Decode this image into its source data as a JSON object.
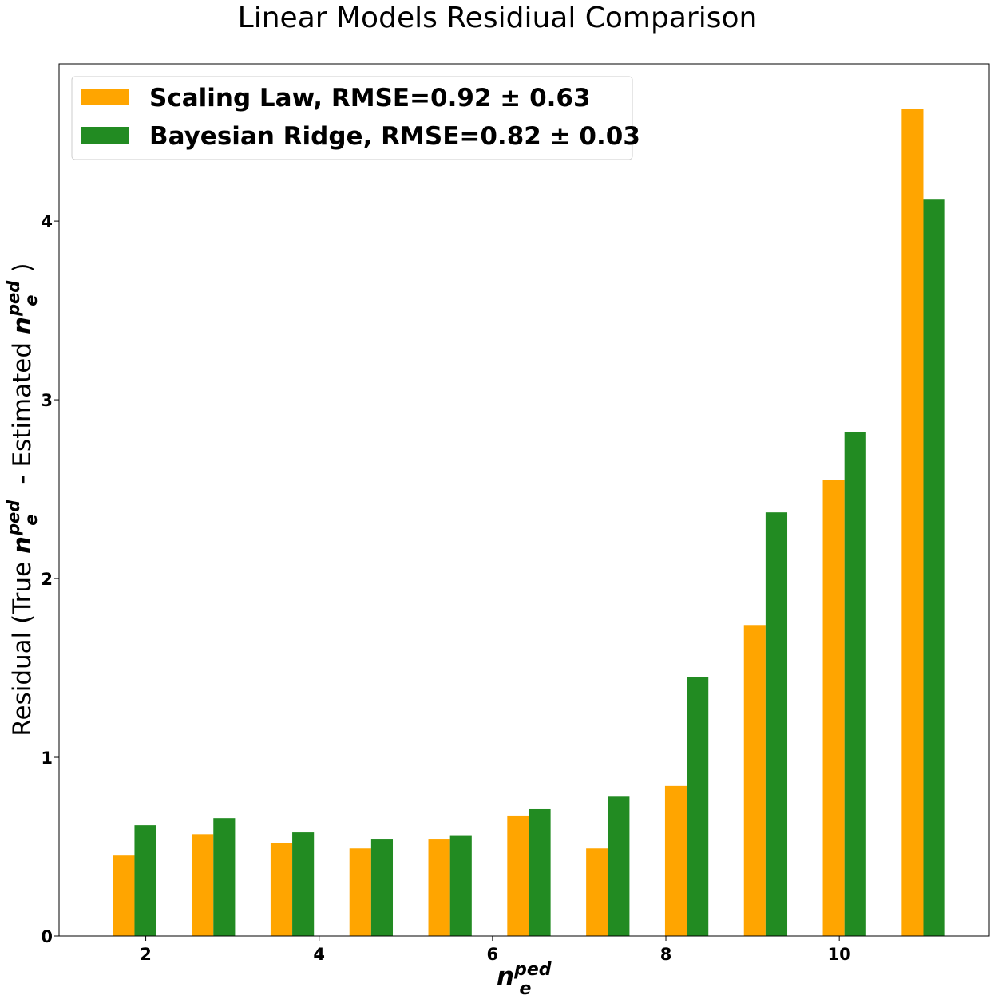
{
  "chart_data": {
    "type": "bar",
    "title": "Linear Models Residiual Comparison",
    "xlabel": "n_e^ped",
    "ylabel": "Residual (True n_e^ped - Estimated n_e^ped)",
    "x_centers": [
      1.87,
      2.78,
      3.69,
      4.6,
      5.51,
      6.42,
      7.33,
      8.24,
      9.15,
      10.06,
      10.97
    ],
    "xlim": [
      1.0,
      11.73
    ],
    "ylim": [
      0,
      4.88
    ],
    "xticks": [
      2,
      4,
      6,
      8,
      10
    ],
    "yticks": [
      0,
      1,
      2,
      3,
      4
    ],
    "grid": false,
    "legend_position": "top-left",
    "series": [
      {
        "name": "Scaling Law, RMSE=0.92 ± 0.63",
        "color": "#ffa500",
        "values": [
          0.45,
          0.57,
          0.52,
          0.49,
          0.54,
          0.67,
          0.49,
          0.84,
          1.74,
          2.55,
          4.63
        ]
      },
      {
        "name": "Bayesian Ridge, RMSE=0.82 ± 0.03",
        "color": "#228b22",
        "values": [
          0.62,
          0.66,
          0.58,
          0.54,
          0.56,
          0.71,
          0.78,
          1.45,
          2.37,
          2.82,
          4.12
        ]
      }
    ]
  },
  "labels": {
    "ylabel_prefix": "Residual (True ",
    "ylabel_mid": " - Estimated ",
    "ylabel_suffix": ")",
    "var_main": "n",
    "var_sub": "e",
    "var_sup": "ped"
  }
}
